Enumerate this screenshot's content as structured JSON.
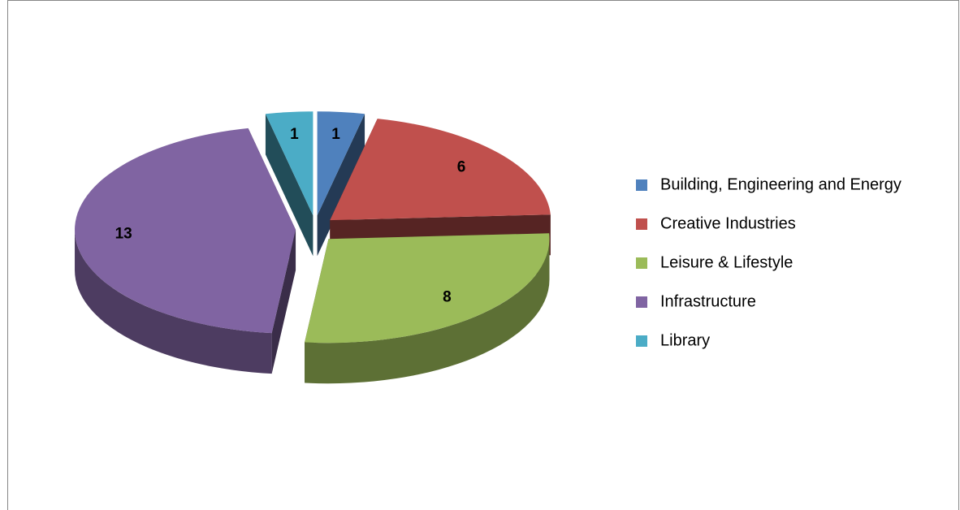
{
  "chart_data": {
    "type": "pie",
    "categories": [
      "Building, Engineering and Energy",
      "Creative Industries",
      "Leisure & Lifestyle",
      "Infrastructure",
      "Library"
    ],
    "values": [
      1,
      6,
      8,
      13,
      1
    ],
    "colors": [
      "#4f81bd",
      "#c0504d",
      "#9bbb59",
      "#8064a2",
      "#4bacc6"
    ],
    "legend": "right"
  }
}
